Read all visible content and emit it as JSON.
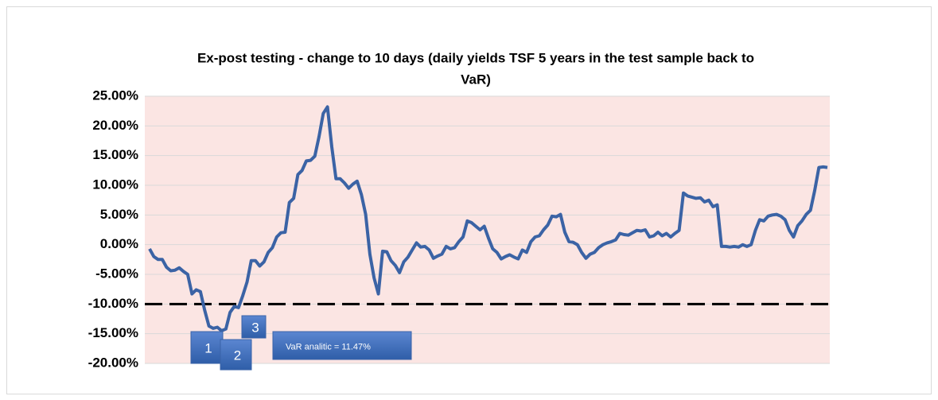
{
  "chart_data": {
    "type": "line",
    "title_lines": [
      "Ex-post testing - change to 10 days (daily yields TSF 5 years in the test sample back to",
      "VaR)"
    ],
    "series": [
      {
        "name": "Change to 10 days",
        "color": "#3b63a5",
        "values": [
          -0.7,
          -2,
          -2.5,
          -2.5,
          -3.8,
          -4.4,
          -4.3,
          -3.9,
          -4.5,
          -5,
          -8.3,
          -7.6,
          -7.9,
          -11,
          -13.7,
          -14.1,
          -13.9,
          -14.5,
          -14.2,
          -11.4,
          -10.4,
          -10.6,
          -8.6,
          -6.3,
          -2.7,
          -2.7,
          -3.6,
          -2.9,
          -1.3,
          -0.5,
          1.3,
          2,
          2.1,
          7.1,
          7.8,
          11.8,
          12.5,
          14.1,
          14.2,
          14.9,
          18.2,
          22.1,
          23.2,
          16.5,
          11.1,
          11.1,
          10.4,
          9.5,
          10.2,
          10.7,
          8.4,
          5.1,
          -1.6,
          -5.6,
          -8.3,
          -1.1,
          -1.2,
          -2.7,
          -3.5,
          -4.7,
          -2.9,
          -2.1,
          -0.9,
          0.3,
          -0.4,
          -0.3,
          -0.9,
          -2.3,
          -1.9,
          -1.6,
          -0.3,
          -0.7,
          -0.5,
          0.5,
          1.3,
          4,
          3.7,
          3.1,
          2.5,
          3.1,
          1.1,
          -0.7,
          -1.3,
          -2.4,
          -2,
          -1.7,
          -2.1,
          -2.4,
          -0.9,
          -1.3,
          0.5,
          1.3,
          1.5,
          2.5,
          3.3,
          4.8,
          4.7,
          5.1,
          2.1,
          0.5,
          0.4,
          0,
          -1.3,
          -2.3,
          -1.6,
          -1.3,
          -0.5,
          0,
          0.3,
          0.5,
          0.8,
          1.9,
          1.7,
          1.6,
          2,
          2.4,
          2.3,
          2.5,
          1.3,
          1.5,
          2.1,
          1.5,
          1.9,
          1.3,
          1.9,
          2.4,
          8.7,
          8.2,
          8,
          7.8,
          7.9,
          7.2,
          7.5,
          6.4,
          6.7,
          -0.3,
          -0.3,
          -0.4,
          -0.3,
          -0.4,
          0,
          -0.3,
          0,
          2.4,
          4.2,
          4,
          4.8,
          5,
          5.1,
          4.8,
          4.2,
          2.4,
          1.3,
          3.2,
          4,
          5.1,
          5.8,
          9.1,
          13,
          13.1,
          13
        ]
      }
    ],
    "reference_line": {
      "value": -10,
      "color": "#000000"
    },
    "ylim": [
      -20,
      25
    ],
    "yticks": [
      {
        "value": -20,
        "label": "-20.00%"
      },
      {
        "value": -15,
        "label": "-15.00%"
      },
      {
        "value": -10,
        "label": "-10.00%"
      },
      {
        "value": -5,
        "label": "-5.00%"
      },
      {
        "value": 0,
        "label": "0.00%"
      },
      {
        "value": 5,
        "label": "5.00%"
      },
      {
        "value": 10,
        "label": "10.00%"
      },
      {
        "value": 15,
        "label": "15.00%"
      },
      {
        "value": 20,
        "label": "20.00%"
      },
      {
        "value": 25,
        "label": "25.00%"
      }
    ],
    "grid": true,
    "plot_background": "#fbe5e3",
    "annotations": [
      {
        "text": "1"
      },
      {
        "text": "2"
      },
      {
        "text": "3"
      },
      {
        "text": "VaR analitic = 11.47%"
      }
    ]
  }
}
